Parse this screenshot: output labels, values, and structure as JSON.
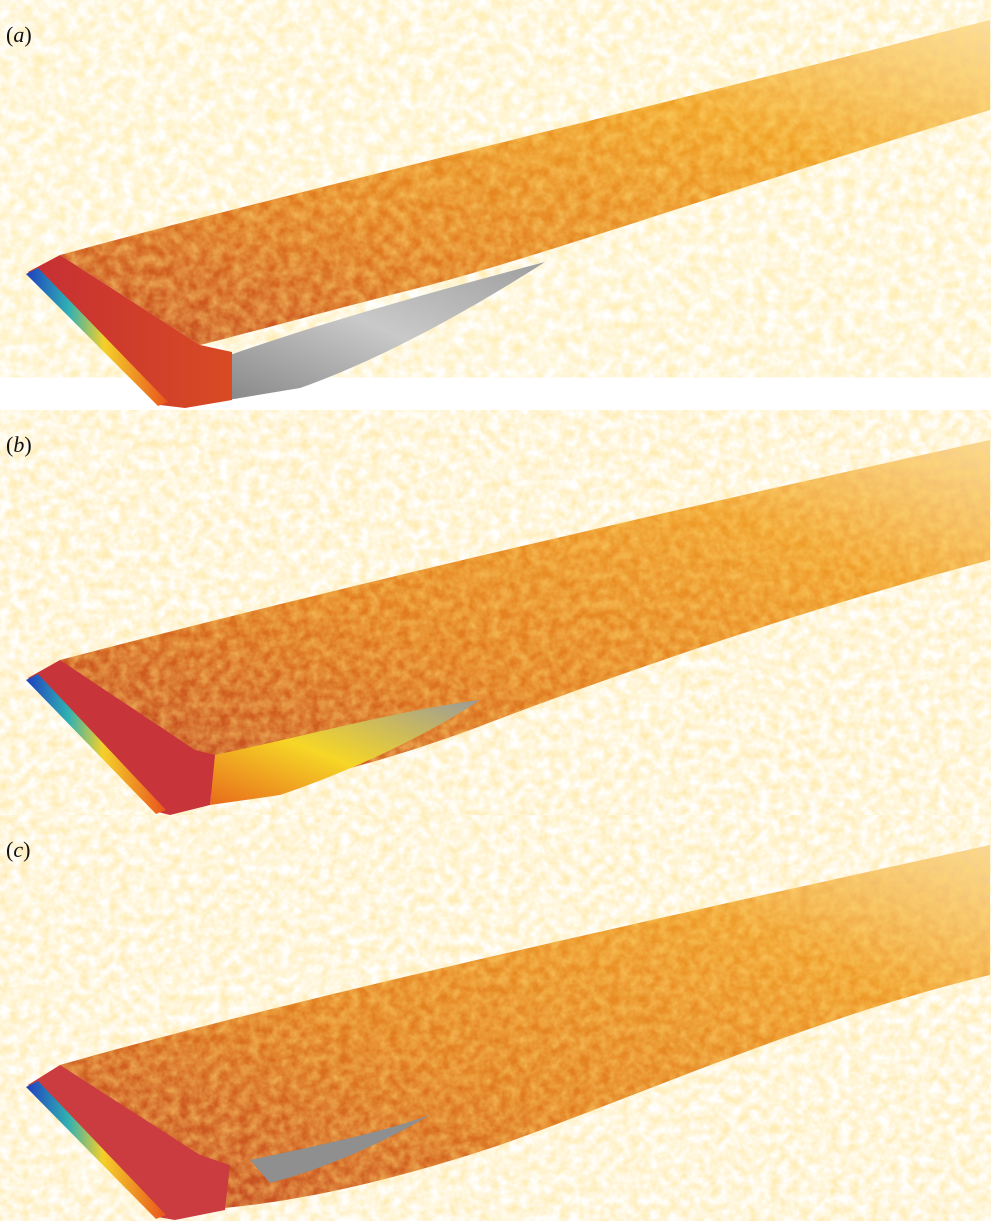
{
  "panels": [
    {
      "id": "a",
      "label_open": "(",
      "label_letter": "a",
      "label_close": ")"
    },
    {
      "id": "b",
      "label_open": "(",
      "label_letter": "b",
      "label_close": ")"
    },
    {
      "id": "c",
      "label_open": "(",
      "label_letter": "c",
      "label_close": ")"
    }
  ],
  "colors": {
    "background": "#ffffff",
    "wing_red": "#c8343a",
    "wing_orange": "#e4621a",
    "surface_grey": "#a9a9a9",
    "turbulence_orange": "#f08a1c",
    "turbulence_yellow": "#f7c331",
    "turbulence_green": "#7bc86c"
  }
}
